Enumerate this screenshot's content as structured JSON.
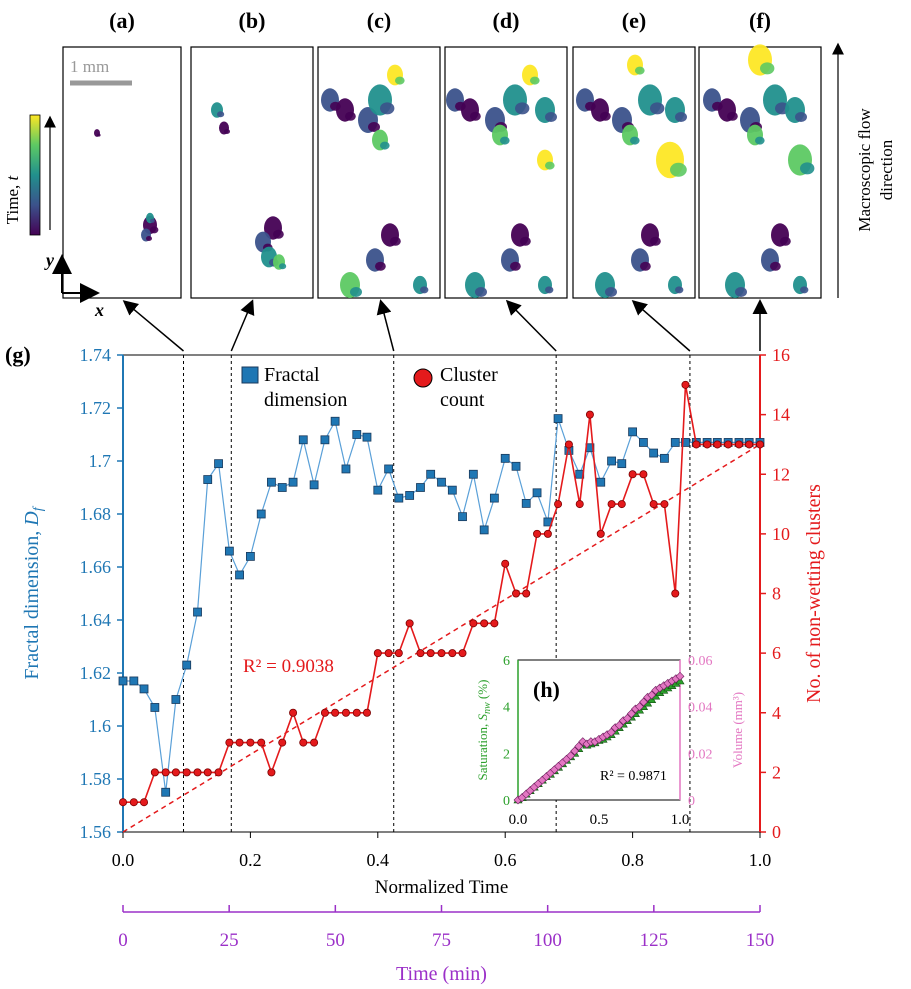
{
  "panels": {
    "labels": [
      "(a)",
      "(b)",
      "(c)",
      "(d)",
      "(e)",
      "(f)"
    ],
    "scale_bar": "1 mm",
    "colorbar_label": "Time, ",
    "colorbar_var": "t",
    "axis_x": "x",
    "axis_y": "y",
    "flow_label_1": "Macroscopic flow",
    "flow_label_2": "direction",
    "colormap": [
      "#440154",
      "#3b528b",
      "#21908d",
      "#5dc963",
      "#fde725"
    ]
  },
  "chart_data": {
    "type": "scatter",
    "panel_label": "(g)",
    "x": [
      0.0,
      0.025,
      0.05,
      0.075,
      0.1,
      0.125,
      0.15,
      0.175,
      0.2,
      0.225,
      0.25,
      0.275,
      0.3,
      0.325,
      0.35,
      0.375,
      0.4,
      0.425,
      0.45,
      0.475,
      0.5,
      0.525,
      0.55,
      0.575,
      0.6,
      0.625,
      0.65,
      0.675,
      0.7,
      0.725,
      0.75,
      0.775,
      0.8,
      0.825,
      0.85,
      0.875,
      0.9,
      0.925,
      0.95,
      0.975,
      1.0
    ],
    "series": [
      {
        "name": "Fractal dimension",
        "axis": "left",
        "color": "#1f77b4",
        "marker": "square",
        "x": [
          0.0,
          0.017,
          0.033,
          0.05,
          0.067,
          0.083,
          0.1,
          0.117,
          0.133,
          0.15,
          0.167,
          0.183,
          0.2,
          0.217,
          0.233,
          0.25,
          0.267,
          0.283,
          0.3,
          0.317,
          0.333,
          0.35,
          0.367,
          0.383,
          0.4,
          0.417,
          0.433,
          0.45,
          0.467,
          0.483,
          0.5,
          0.517,
          0.533,
          0.55,
          0.567,
          0.583,
          0.6,
          0.617,
          0.633,
          0.65,
          0.667,
          0.683,
          0.7,
          0.717,
          0.733,
          0.75,
          0.767,
          0.783,
          0.8,
          0.817,
          0.833,
          0.85,
          0.867,
          0.883,
          0.9,
          0.917,
          0.933,
          0.95,
          0.967,
          0.983,
          1.0
        ],
        "values": [
          1.617,
          1.617,
          1.614,
          1.607,
          1.575,
          1.61,
          1.623,
          1.643,
          1.693,
          1.699,
          1.666,
          1.657,
          1.664,
          1.68,
          1.692,
          1.69,
          1.692,
          1.708,
          1.691,
          1.708,
          1.715,
          1.697,
          1.71,
          1.709,
          1.689,
          1.697,
          1.686,
          1.687,
          1.69,
          1.695,
          1.692,
          1.689,
          1.679,
          1.695,
          1.674,
          1.686,
          1.701,
          1.698,
          1.684,
          1.688,
          1.677,
          1.716,
          1.704,
          1.695,
          1.705,
          1.692,
          1.7,
          1.699,
          1.711,
          1.707,
          1.703,
          1.701,
          1.707,
          1.707,
          1.707,
          1.707,
          1.707,
          1.707,
          1.707,
          1.707,
          1.707
        ]
      },
      {
        "name": "Cluster count",
        "axis": "right",
        "color": "#e41a1c",
        "marker": "circle",
        "x": [
          0.0,
          0.017,
          0.033,
          0.05,
          0.067,
          0.083,
          0.1,
          0.117,
          0.133,
          0.15,
          0.167,
          0.183,
          0.2,
          0.217,
          0.233,
          0.25,
          0.267,
          0.283,
          0.3,
          0.317,
          0.333,
          0.35,
          0.367,
          0.383,
          0.4,
          0.417,
          0.433,
          0.45,
          0.467,
          0.483,
          0.5,
          0.517,
          0.533,
          0.55,
          0.567,
          0.583,
          0.6,
          0.617,
          0.633,
          0.65,
          0.667,
          0.683,
          0.7,
          0.717,
          0.733,
          0.75,
          0.767,
          0.783,
          0.8,
          0.817,
          0.833,
          0.85,
          0.867,
          0.883,
          0.9,
          0.917,
          0.933,
          0.95,
          0.967,
          0.983,
          1.0
        ],
        "values": [
          1,
          1,
          1,
          2,
          2,
          2,
          2,
          2,
          2,
          2,
          3,
          3,
          3,
          3,
          2,
          3,
          4,
          3,
          3,
          4,
          4,
          4,
          4,
          4,
          6,
          6,
          6,
          7,
          6,
          6,
          6,
          6,
          6,
          7,
          7,
          7,
          9,
          8,
          8,
          10,
          10,
          11,
          13,
          11,
          14,
          10,
          11,
          11,
          12,
          12,
          11,
          11,
          8,
          15,
          13,
          13,
          13,
          13,
          13,
          13,
          13
        ]
      }
    ],
    "trendline": {
      "series": "Cluster count",
      "from": [
        0,
        0
      ],
      "to": [
        1.0,
        13
      ],
      "r2_label": "R² = 0.9038"
    },
    "xlabel": "Normalized Time",
    "xlim": [
      0,
      1
    ],
    "xticks": [
      "0.0",
      "0.2",
      "0.4",
      "0.6",
      "0.8",
      "1.0"
    ],
    "ylabel_left": "Fractal dimension, ",
    "ylabel_left_var": "D",
    "ylabel_left_sub": "f",
    "ylim_left": [
      1.56,
      1.74
    ],
    "yticks_left": [
      "1.56",
      "1.58",
      "1.6",
      "1.62",
      "1.64",
      "1.66",
      "1.68",
      "1.7",
      "1.72",
      "1.74"
    ],
    "ylabel_right": "No. of non-wetting clusters",
    "ylim_right": [
      0,
      16
    ],
    "yticks_right": [
      "0",
      "2",
      "4",
      "6",
      "8",
      "10",
      "12",
      "14",
      "16"
    ],
    "legend": [
      {
        "lines": [
          "Fractal",
          "dimension"
        ],
        "marker": "square",
        "color": "#1f77b4"
      },
      {
        "lines": [
          "Cluster",
          "count"
        ],
        "marker": "circle",
        "color": "#e41a1c"
      }
    ],
    "vlines_x": [
      0.095,
      0.17,
      0.425,
      0.68,
      0.89
    ],
    "secondary_x": {
      "label": "Time (min)",
      "ticks": [
        "0",
        "25",
        "50",
        "75",
        "100",
        "125",
        "150"
      ],
      "lim": [
        0,
        150
      ],
      "color": "#9b30c8"
    },
    "inset": {
      "panel_label": "(h)",
      "xlim": [
        0,
        1
      ],
      "xticks": [
        "0.0",
        "0.5",
        "1.0"
      ],
      "ylabel_left": "Saturation, ",
      "ylabel_left_var": "S",
      "ylabel_left_sub": "nw",
      "ylabel_left_unit": " (%)",
      "ylim_left": [
        0,
        6
      ],
      "yticks_left": [
        "0",
        "2",
        "4",
        "6"
      ],
      "ylabel_right": "Volume (mm³)",
      "ylim_right": [
        0,
        0.06
      ],
      "yticks_right": [
        "0",
        "0.02",
        "0.04",
        "0.06"
      ],
      "r2_label": "R² = 0.9871",
      "series": [
        {
          "name": "Saturation",
          "axis": "left",
          "color": "#2ca02c",
          "marker": "triangle",
          "x": [
            0.0,
            0.025,
            0.05,
            0.075,
            0.1,
            0.125,
            0.15,
            0.175,
            0.2,
            0.225,
            0.25,
            0.275,
            0.3,
            0.325,
            0.35,
            0.375,
            0.4,
            0.425,
            0.45,
            0.475,
            0.5,
            0.525,
            0.55,
            0.575,
            0.6,
            0.625,
            0.65,
            0.675,
            0.7,
            0.725,
            0.75,
            0.775,
            0.8,
            0.825,
            0.85,
            0.875,
            0.9,
            0.925,
            0.95,
            0.975,
            1.0
          ],
          "values": [
            0.0,
            0.1,
            0.25,
            0.4,
            0.55,
            0.7,
            0.85,
            1.0,
            1.1,
            1.25,
            1.4,
            1.55,
            1.7,
            1.85,
            2.0,
            2.2,
            2.4,
            2.35,
            2.4,
            2.45,
            2.55,
            2.6,
            2.7,
            2.8,
            2.95,
            3.1,
            3.25,
            3.4,
            3.55,
            3.7,
            3.85,
            4.0,
            4.15,
            4.3,
            4.45,
            4.6,
            4.7,
            4.8,
            4.9,
            5.0,
            5.1
          ]
        },
        {
          "name": "Volume",
          "axis": "right",
          "color": "#e377c2",
          "marker": "diamond",
          "x": [
            0.0,
            0.025,
            0.05,
            0.075,
            0.1,
            0.125,
            0.15,
            0.175,
            0.2,
            0.225,
            0.25,
            0.275,
            0.3,
            0.325,
            0.35,
            0.375,
            0.4,
            0.425,
            0.45,
            0.475,
            0.5,
            0.525,
            0.55,
            0.575,
            0.6,
            0.625,
            0.65,
            0.675,
            0.7,
            0.725,
            0.75,
            0.775,
            0.8,
            0.825,
            0.85,
            0.875,
            0.9,
            0.925,
            0.95,
            0.975,
            1.0
          ],
          "values": [
            0.0,
            0.001,
            0.0025,
            0.004,
            0.0055,
            0.007,
            0.0085,
            0.01,
            0.0115,
            0.013,
            0.0145,
            0.016,
            0.0175,
            0.019,
            0.021,
            0.023,
            0.025,
            0.024,
            0.025,
            0.025,
            0.026,
            0.027,
            0.028,
            0.029,
            0.031,
            0.032,
            0.034,
            0.035,
            0.037,
            0.039,
            0.04,
            0.042,
            0.044,
            0.045,
            0.047,
            0.048,
            0.049,
            0.05,
            0.051,
            0.052,
            0.053
          ]
        }
      ]
    }
  }
}
